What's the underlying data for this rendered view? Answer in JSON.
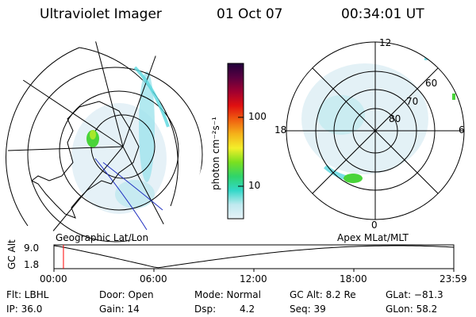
{
  "header": {
    "instrument": "Ultraviolet Imager",
    "date": "01 Oct 07",
    "time": "00:34:01 UT"
  },
  "geographic_panel": {
    "label": "Geographic Lat/Lon"
  },
  "apex_panel": {
    "label": "Apex MLat/MLT",
    "lat_labels": [
      "60",
      "70",
      "80"
    ],
    "mlt_labels": {
      "top": "12",
      "left": "18",
      "right": "6",
      "bottom": "0"
    }
  },
  "colorbar": {
    "unit_label": "photon cm⁻²s⁻¹",
    "ticks": [
      "100",
      "10"
    ]
  },
  "altitude_track": {
    "axis_label": "GC Alt",
    "y_ticks": [
      "9.0",
      "1.8"
    ],
    "x_ticks": [
      "00:00",
      "06:00",
      "12:00",
      "18:00",
      "23:59"
    ],
    "marker_time_hours": 0.57,
    "marker_color": "#ff0000"
  },
  "info": {
    "row1": {
      "flt": "Flt: LBHL",
      "door": "Door: Open",
      "mode": "Mode: Normal",
      "gc_alt": "GC Alt: 8.2 Re",
      "glat": "GLat: −81.3"
    },
    "row2": {
      "ip": "IP: 36.0",
      "gain": "Gain: 14",
      "dsp_label": "Dsp:",
      "dsp_value": "4.2",
      "seq": "Seq: 39",
      "glon": "GLon: 58.2"
    }
  },
  "colors": {
    "colorbar_stops": [
      "#e6f2f7",
      "#bfe9ef",
      "#33d8c8",
      "#2fd46a",
      "#7ae020",
      "#f3ef2a",
      "#f5b21a",
      "#f06010",
      "#e01010",
      "#a00030",
      "#5a0040",
      "#20003a"
    ],
    "emission_green": "#49d43a",
    "emission_cyan": "#7fdfe8",
    "emission_light": "#d8eef6"
  }
}
